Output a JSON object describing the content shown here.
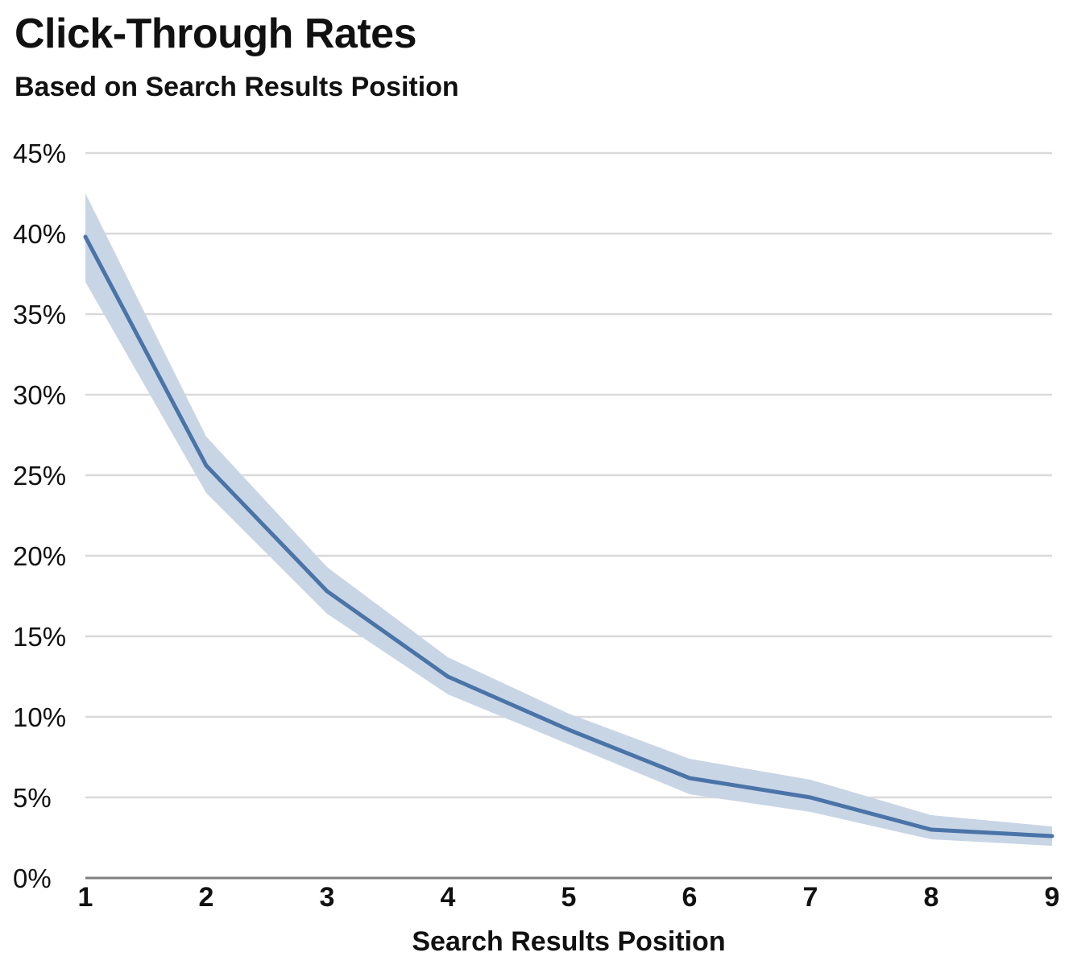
{
  "header": {
    "title": "Click-Through Rates",
    "subtitle": "Based on Search Results Position"
  },
  "colors": {
    "line": "#4a74a8",
    "band": "#c8d5e5",
    "grid": "#d9d9d9",
    "axis": "#7f7f7f"
  },
  "chart_data": {
    "type": "line",
    "title": "Click-Through Rates",
    "subtitle": "Based on Search Results Position",
    "xlabel": "Search Results Position",
    "ylabel": "",
    "x": [
      1,
      2,
      3,
      4,
      5,
      6,
      7,
      8,
      9
    ],
    "x_tick_labels": [
      "1",
      "2",
      "3",
      "4",
      "5",
      "6",
      "7",
      "8",
      "9"
    ],
    "xlim": [
      1,
      9
    ],
    "ylim": [
      0,
      45
    ],
    "y_ticks": [
      0,
      5,
      10,
      15,
      20,
      25,
      30,
      35,
      40,
      45
    ],
    "y_tick_labels": [
      "0%",
      "5%",
      "10%",
      "15%",
      "20%",
      "25%",
      "30%",
      "35%",
      "40%",
      "45%"
    ],
    "grid": true,
    "legend": "none",
    "series": [
      {
        "values": [
          39.8,
          25.6,
          17.8,
          12.5,
          9.2,
          6.2,
          5.0,
          3.0,
          2.6
        ],
        "lower": [
          37.0,
          23.9,
          16.4,
          11.4,
          8.3,
          5.2,
          4.1,
          2.4,
          2.0
        ],
        "upper": [
          42.5,
          27.4,
          19.3,
          13.7,
          10.2,
          7.4,
          6.1,
          3.9,
          3.2
        ]
      }
    ]
  }
}
